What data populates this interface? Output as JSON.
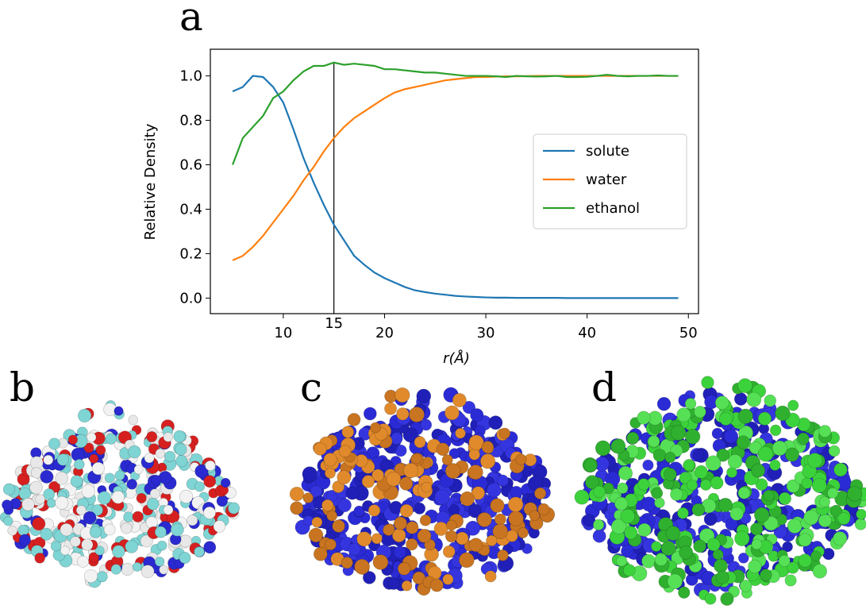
{
  "panel_labels": [
    "a",
    "b",
    "c",
    "d"
  ],
  "chart_data": {
    "type": "line",
    "x_label": "r(Å)",
    "y_label": "Relative Density",
    "x": [
      5,
      6,
      7,
      8,
      9,
      10,
      11,
      12,
      13,
      14,
      15,
      16,
      17,
      18,
      19,
      20,
      21,
      22,
      23,
      24,
      25,
      26,
      27,
      28,
      29,
      30,
      31,
      32,
      33,
      34,
      35,
      36,
      37,
      38,
      39,
      40,
      41,
      42,
      43,
      44,
      45,
      46,
      47,
      48,
      49
    ],
    "series": [
      {
        "name": "solute",
        "color": "#1f77b4",
        "values": [
          0.93,
          0.95,
          1.0,
          0.995,
          0.95,
          0.88,
          0.76,
          0.63,
          0.52,
          0.42,
          0.33,
          0.26,
          0.19,
          0.15,
          0.115,
          0.09,
          0.07,
          0.05,
          0.035,
          0.027,
          0.02,
          0.015,
          0.01,
          0.007,
          0.005,
          0.003,
          0.002,
          0.002,
          0.001,
          0.001,
          0.001,
          0.001,
          0.001,
          0,
          0,
          0,
          0,
          0,
          0,
          0,
          0,
          0,
          0,
          0,
          0
        ]
      },
      {
        "name": "water",
        "color": "#ff7f0e",
        "values": [
          0.17,
          0.19,
          0.23,
          0.28,
          0.34,
          0.4,
          0.46,
          0.53,
          0.59,
          0.66,
          0.72,
          0.77,
          0.81,
          0.84,
          0.87,
          0.9,
          0.925,
          0.94,
          0.95,
          0.96,
          0.97,
          0.98,
          0.985,
          0.99,
          0.995,
          0.995,
          0.997,
          0.998,
          0.998,
          0.999,
          1.0,
          1.0,
          1.0,
          1.0,
          1.0,
          1.0,
          1.0,
          1.0,
          1.0,
          1.0,
          1.0,
          1.0,
          1.0,
          1.0,
          1.0
        ]
      },
      {
        "name": "ethanol",
        "color": "#2ca02c",
        "values": [
          0.6,
          0.72,
          0.77,
          0.82,
          0.9,
          0.93,
          0.98,
          1.02,
          1.045,
          1.045,
          1.06,
          1.05,
          1.055,
          1.05,
          1.045,
          1.03,
          1.03,
          1.025,
          1.02,
          1.015,
          1.015,
          1.01,
          1.005,
          1.0,
          1.0,
          1.0,
          0.998,
          0.995,
          1.0,
          0.998,
          0.997,
          0.998,
          1.0,
          0.995,
          0.995,
          0.996,
          1.0,
          1.005,
          1.0,
          0.998,
          1.0,
          1.0,
          1.002,
          1.0,
          1.0
        ]
      }
    ],
    "xlim": [
      2.8,
      51
    ],
    "ylim": [
      -0.07,
      1.12
    ],
    "xticks": [
      10,
      20,
      30,
      40,
      50
    ],
    "yticks": [
      {
        "value": 0,
        "label": "0.0"
      },
      {
        "value": 0.2,
        "label": "0.2"
      },
      {
        "value": 0.4,
        "label": "0.4"
      },
      {
        "value": 0.6,
        "label": "0.6"
      },
      {
        "value": 0.8,
        "label": "0.8"
      },
      {
        "value": 1,
        "label": "1.0"
      }
    ],
    "vline": {
      "x": 15,
      "label": "15"
    },
    "legend": "center right",
    "grid": false
  }
}
